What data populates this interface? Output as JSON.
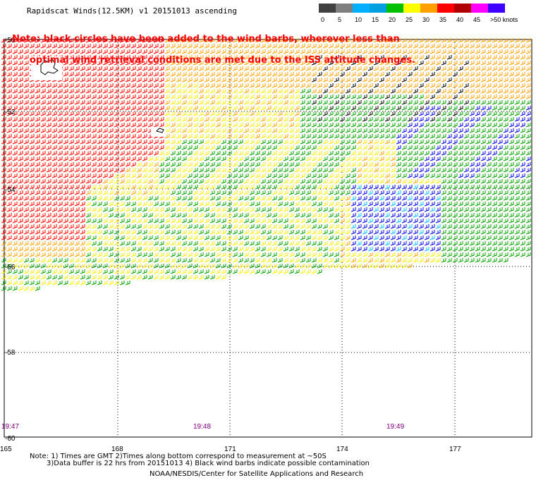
{
  "title": "Rapidscat Winds(12.5KM) v1 20151013 ascending",
  "note": {
    "line1": "Note: black circles have been added to the wind barbs, wherever less than",
    "line2": "optimal wind retrieval conditions are met due to the ISS attitude changes."
  },
  "legend": {
    "labels": [
      "0",
      "5",
      "10",
      "15",
      "20",
      "25",
      "30",
      "35",
      "40",
      "45",
      ">50 knots"
    ],
    "colors": [
      "#404040",
      "#7f7f7f",
      "#00b0ff",
      "#00a0e0",
      "#00c000",
      "#ffff00",
      "#ffa000",
      "#ff0000",
      "#b00000",
      "#ff00ff",
      "#4000ff"
    ]
  },
  "axes": {
    "lat_labels": [
      "-50",
      "-52",
      "-54",
      "-56",
      "-58",
      "-60"
    ],
    "lon_labels": [
      "165",
      "168",
      "171",
      "174",
      "177"
    ]
  },
  "times": [
    "19:47",
    "19:48",
    "19:49"
  ],
  "footer": {
    "line1": "Note: 1) Times are GMT 2)Times along bottom correspond to measurement at ~50S",
    "line2": "3)Data buffer is 22 hrs from 20151013 4) Black wind barbs indicate possible contamination",
    "credit": "NOAA/NESDIS/Center for Satellite Applications and Research"
  },
  "colors": {
    "red": "#ff0000",
    "darkred": "#cc0000",
    "orange": "#ffa500",
    "yellow": "#ffee00",
    "green": "#00a000",
    "blue": "#0000e0",
    "cyan": "#00c0ff",
    "black": "#000000",
    "time_purple": "#800080"
  }
}
